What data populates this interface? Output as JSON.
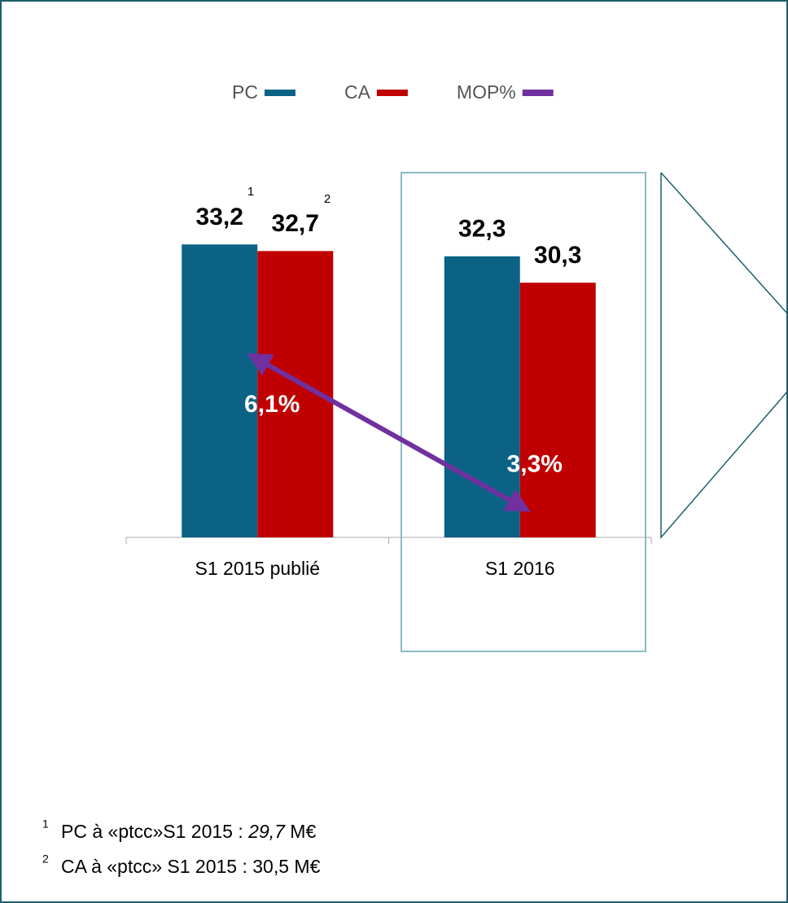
{
  "chart_data": {
    "type": "bar",
    "categories": [
      "S1 2015 publié",
      "S1 2016"
    ],
    "series": [
      {
        "name": "PC",
        "color": "#0b6285",
        "values": [
          33.2,
          32.3
        ],
        "value_labels": [
          "33,2",
          "32,3"
        ]
      },
      {
        "name": "CA",
        "color": "#c00000",
        "values": [
          32.7,
          30.3
        ],
        "value_labels": [
          "32,7",
          "30,3"
        ]
      },
      {
        "name": "MOP%",
        "type": "line",
        "axis": "y2",
        "color": "#7030a0",
        "values": [
          6.1,
          3.3
        ],
        "value_labels": [
          "6,1%",
          "3,3%"
        ]
      }
    ],
    "ylim": [
      11,
      40
    ],
    "y2lim": [
      2.7,
      10
    ],
    "legend": "top",
    "annotations": [
      "1",
      "2"
    ]
  },
  "footnotes": [
    {
      "marker": "1",
      "parts": [
        "PC à «ptcc»S1 2015  : ",
        "29,7",
        " M€"
      ]
    },
    {
      "marker": "2",
      "parts": [
        "CA à «ptcc» S1 2015 : 30,5 M€"
      ]
    }
  ]
}
